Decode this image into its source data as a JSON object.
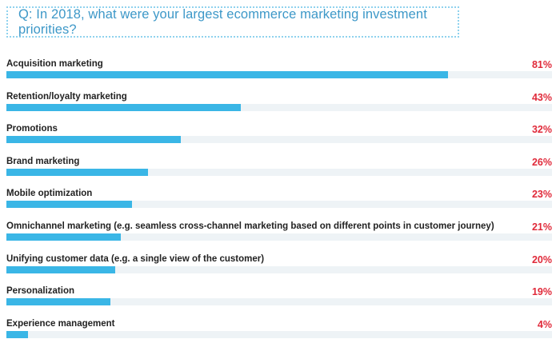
{
  "question": "Q: In 2018, what were your largest ecommerce marketing investment priorities?",
  "colors": {
    "bar": "#3ab6e6",
    "value": "#e02a3a",
    "question": "#3d98c8"
  },
  "chart_data": {
    "type": "bar",
    "orientation": "horizontal",
    "value_suffix": "%",
    "xlim": [
      0,
      100
    ],
    "categories": [
      "Acquisition marketing",
      "Retention/loyalty marketing",
      "Promotions",
      "Brand marketing",
      "Mobile optimization",
      "Omnichannel marketing (e.g. seamless cross-channel marketing based on different points in customer journey)",
      "Unifying customer data (e.g. a single view of the customer)",
      "Personalization",
      "Experience management"
    ],
    "values": [
      81,
      43,
      32,
      26,
      23,
      21,
      20,
      19,
      4
    ],
    "value_labels": [
      "81%",
      "43%",
      "32%",
      "26%",
      "23%",
      "21%",
      "20%",
      "19%",
      "4%"
    ]
  }
}
